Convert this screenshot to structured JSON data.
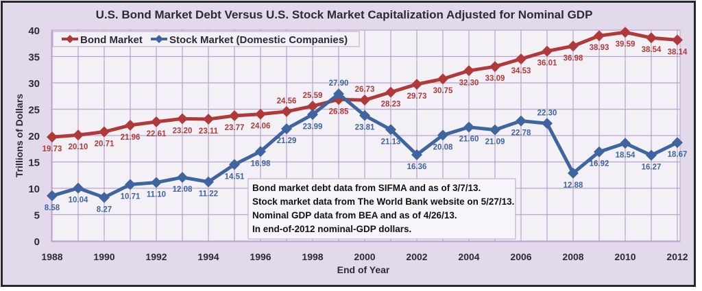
{
  "chart_data": {
    "type": "line",
    "title": "U.S. Bond Market Debt Versus U.S. Stock Market Capitalization Adjusted for Nominal GDP",
    "xlabel": "End of Year",
    "ylabel": "Trillions of Dollars",
    "ylim": [
      0,
      40
    ],
    "yticks": [
      "0",
      "5",
      "10",
      "15",
      "20",
      "25",
      "30",
      "35",
      "40"
    ],
    "xticks": [
      "1988",
      "1990",
      "1992",
      "1994",
      "1996",
      "1998",
      "2000",
      "2002",
      "2004",
      "2006",
      "2008",
      "2010",
      "2012"
    ],
    "x": [
      1988,
      1989,
      1990,
      1991,
      1992,
      1993,
      1994,
      1995,
      1996,
      1997,
      1998,
      1999,
      2000,
      2001,
      2002,
      2003,
      2004,
      2005,
      2006,
      2007,
      2008,
      2009,
      2010,
      2011,
      2012
    ],
    "grid": true,
    "legend_placement": "top-left",
    "series": [
      {
        "name": "Bond Market",
        "color": "#b03a3a",
        "marker": "diamond",
        "values": [
          19.73,
          20.1,
          20.71,
          21.96,
          22.61,
          23.2,
          23.11,
          23.77,
          24.06,
          24.56,
          25.59,
          26.85,
          26.73,
          28.23,
          29.73,
          30.75,
          32.3,
          33.09,
          34.53,
          36.01,
          36.98,
          38.93,
          39.59,
          38.54,
          38.14
        ],
        "labels": [
          "19.73",
          "20.10",
          "20.71",
          "21.96",
          "22.61",
          "23.20",
          "23.11",
          "23.77",
          "24.06",
          "24.56",
          "25.59",
          "26.85",
          "26.73",
          "28.23",
          "29.73",
          "30.75",
          "32.30",
          "33.09",
          "34.53",
          "36.01",
          "36.98",
          "38.93",
          "39.59",
          "38.54",
          "38.14"
        ]
      },
      {
        "name": "Stock Market (Domestic Companies)",
        "color": "#3f65a0",
        "marker": "diamond",
        "values": [
          8.58,
          10.04,
          8.27,
          10.71,
          11.1,
          12.08,
          11.22,
          14.51,
          16.98,
          21.29,
          23.99,
          27.9,
          23.81,
          21.13,
          16.36,
          20.08,
          21.6,
          21.09,
          22.78,
          22.3,
          12.88,
          16.92,
          18.54,
          16.27,
          18.67
        ],
        "labels": [
          "8.58",
          "10.04",
          "8.27",
          "10.71",
          "11.10",
          "12.08",
          "11.22",
          "14.51",
          "16.98",
          "21.29",
          "23.99",
          "27.90",
          "23.81",
          "21.13",
          "16.36",
          "20.08",
          "21.60",
          "21.09",
          "22.78",
          "22.30",
          "12.88",
          "16.92",
          "18.54",
          "16.27",
          "18.67"
        ]
      }
    ],
    "annotation": [
      "Bond market debt data from SIFMA and as of 3/7/13.",
      "Stock market data from The World Bank website on 5/27/13.",
      "Nominal GDP data from BEA and as of 4/26/13.",
      "In end-of-2012 nominal-GDP dollars."
    ]
  }
}
